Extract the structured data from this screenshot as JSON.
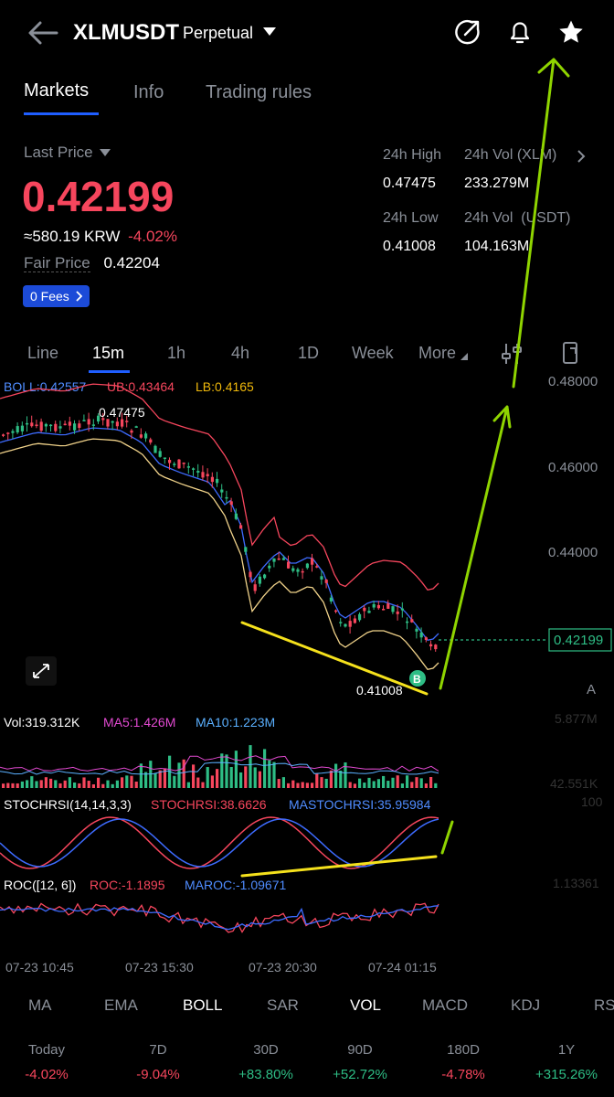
{
  "header": {
    "symbol": "XLMUSDT",
    "contract_type": "Perpetual",
    "icons": [
      "back-arrow-icon",
      "chevron-down-icon",
      "share-icon",
      "bell-icon",
      "star-icon"
    ]
  },
  "tabs": [
    "Markets",
    "Info",
    "Trading rules"
  ],
  "price": {
    "last_price_label": "Last Price",
    "last_price": "0.42199",
    "krw": "≈580.19 KRW",
    "change": "-4.02%",
    "fair_price_label": "Fair Price",
    "fair_price": "0.42204",
    "fees_label": "0 Fees"
  },
  "stats": {
    "high_label": "24h High",
    "high": "0.47475",
    "vol_xlm_label": "24h Vol (XLM)",
    "vol_xlm": "233.279M",
    "low_label": "24h Low",
    "low": "0.41008",
    "vol_usdt_label": "24h Vol  (USDT)",
    "vol_usdt": "104.163M"
  },
  "timeframes": [
    "Line",
    "15m",
    "1h",
    "4h",
    "1D",
    "Week",
    "More"
  ],
  "selected_timeframe": "15m",
  "boll": {
    "label": "BOLL:0.42557",
    "ub": "UB:0.43464",
    "lb": "LB:0.4165"
  },
  "price_axis": [
    "0.48000",
    "0.46000",
    "0.44000"
  ],
  "current_price_tag": "0.42199",
  "high_marker": "0.47475",
  "low_marker": "0.41008",
  "buy_marker": "B",
  "right_edge_letter": "A",
  "volume": {
    "vol": "Vol:319.312K",
    "ma5": "MA5:1.426M",
    "ma10": "MA10:1.223M",
    "axis_top": "5.877M",
    "axis_bottom": "42.551K"
  },
  "stochrsi": {
    "label": "STOCHRSI(14,14,3,3)",
    "value": "STOCHRSI:38.6626",
    "ma": "MASTOCHRSI:35.95984",
    "axis": "100"
  },
  "roc": {
    "label": "ROC([12, 6])",
    "value": "ROC:-1.1895",
    "ma": "MAROC:-1.09671",
    "axis": "1.13361"
  },
  "time_axis": [
    "07-23 10:45",
    "07-23 15:30",
    "07-23 20:30",
    "07-24 01:15"
  ],
  "indicators": [
    "MA",
    "EMA",
    "BOLL",
    "SAR",
    "VOL",
    "MACD",
    "KDJ",
    "RS"
  ],
  "active_indicators": [
    "BOLL",
    "VOL"
  ],
  "performance": [
    {
      "label": "Today",
      "value": "-4.02%"
    },
    {
      "label": "7D",
      "value": "-9.04%"
    },
    {
      "label": "30D",
      "value": "+83.80%"
    },
    {
      "label": "90D",
      "value": "+52.72%"
    },
    {
      "label": "180D",
      "value": "-4.78%"
    },
    {
      "label": "1Y",
      "value": "+315.26%"
    }
  ],
  "chart_data": {
    "type": "candlestick",
    "series": [
      {
        "name": "BOLL",
        "values": []
      },
      {
        "name": "UB",
        "values": []
      },
      {
        "name": "LB",
        "values": []
      }
    ],
    "high": 0.47475,
    "low": 0.41008,
    "last": 0.42199,
    "ylim": [
      0.41,
      0.48
    ]
  },
  "colors": {
    "up": "#2ebd85",
    "down": "#f6465d",
    "accent": "#1f5eff",
    "annotation_green": "#8fd400",
    "annotation_yellow": "#f5e11c"
  }
}
